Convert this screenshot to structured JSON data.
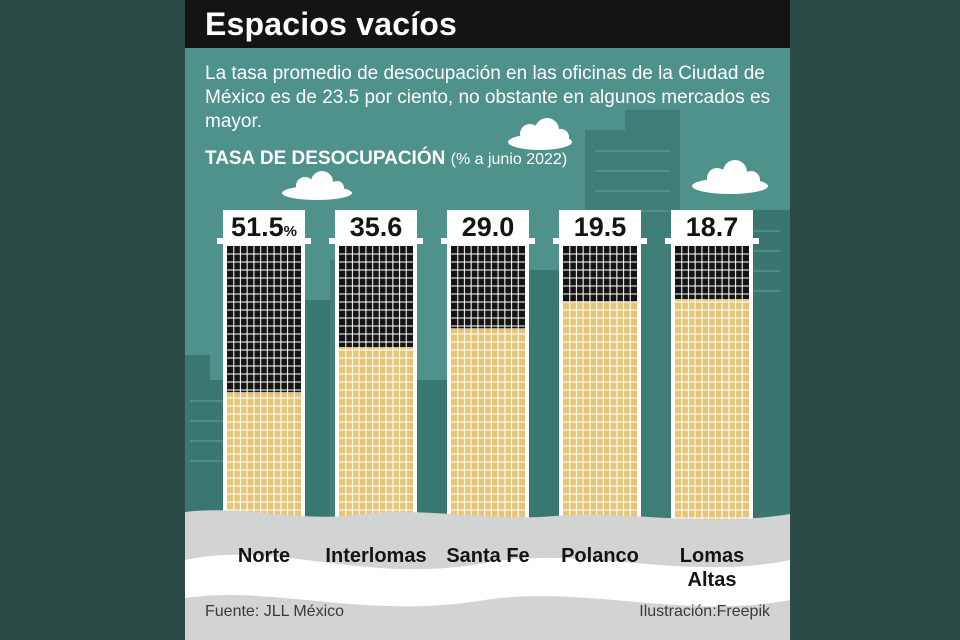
{
  "header": {
    "title": "Espacios vacíos",
    "subtitle": "La tasa  promedio de desocupación en las oficinas de la Ciudad de México es de 23.5 por ciento, no obstante en algunos mercados es mayor.",
    "chart_title": "TASA DE DESOCUPACIÓN",
    "chart_unit": "(% a junio 2022)"
  },
  "footer": {
    "source": "Fuente: JLL México",
    "credit": "Ilustración:Freepik"
  },
  "colors": {
    "panel": "#4f918b",
    "outer": "#2c4b47",
    "titlebar": "#141414",
    "empty_fill": "#141414",
    "occupied_fill": "#e6c57a",
    "tower_frame": "#ffffff"
  },
  "chart_data": {
    "type": "bar",
    "title": "TASA DE DESOCUPACIÓN",
    "subtitle": "(% a junio 2022)",
    "categories": [
      "Norte",
      "Interlomas",
      "Santa Fe",
      "Polanco",
      "Lomas Altas"
    ],
    "values": [
      51.5,
      35.6,
      29.0,
      19.5,
      18.7
    ],
    "value_labels": [
      "51.5",
      "35.6",
      "29.0",
      "19.5",
      "18.7"
    ],
    "first_label_unit": "%",
    "ylim": [
      0,
      100
    ],
    "grid": false
  }
}
